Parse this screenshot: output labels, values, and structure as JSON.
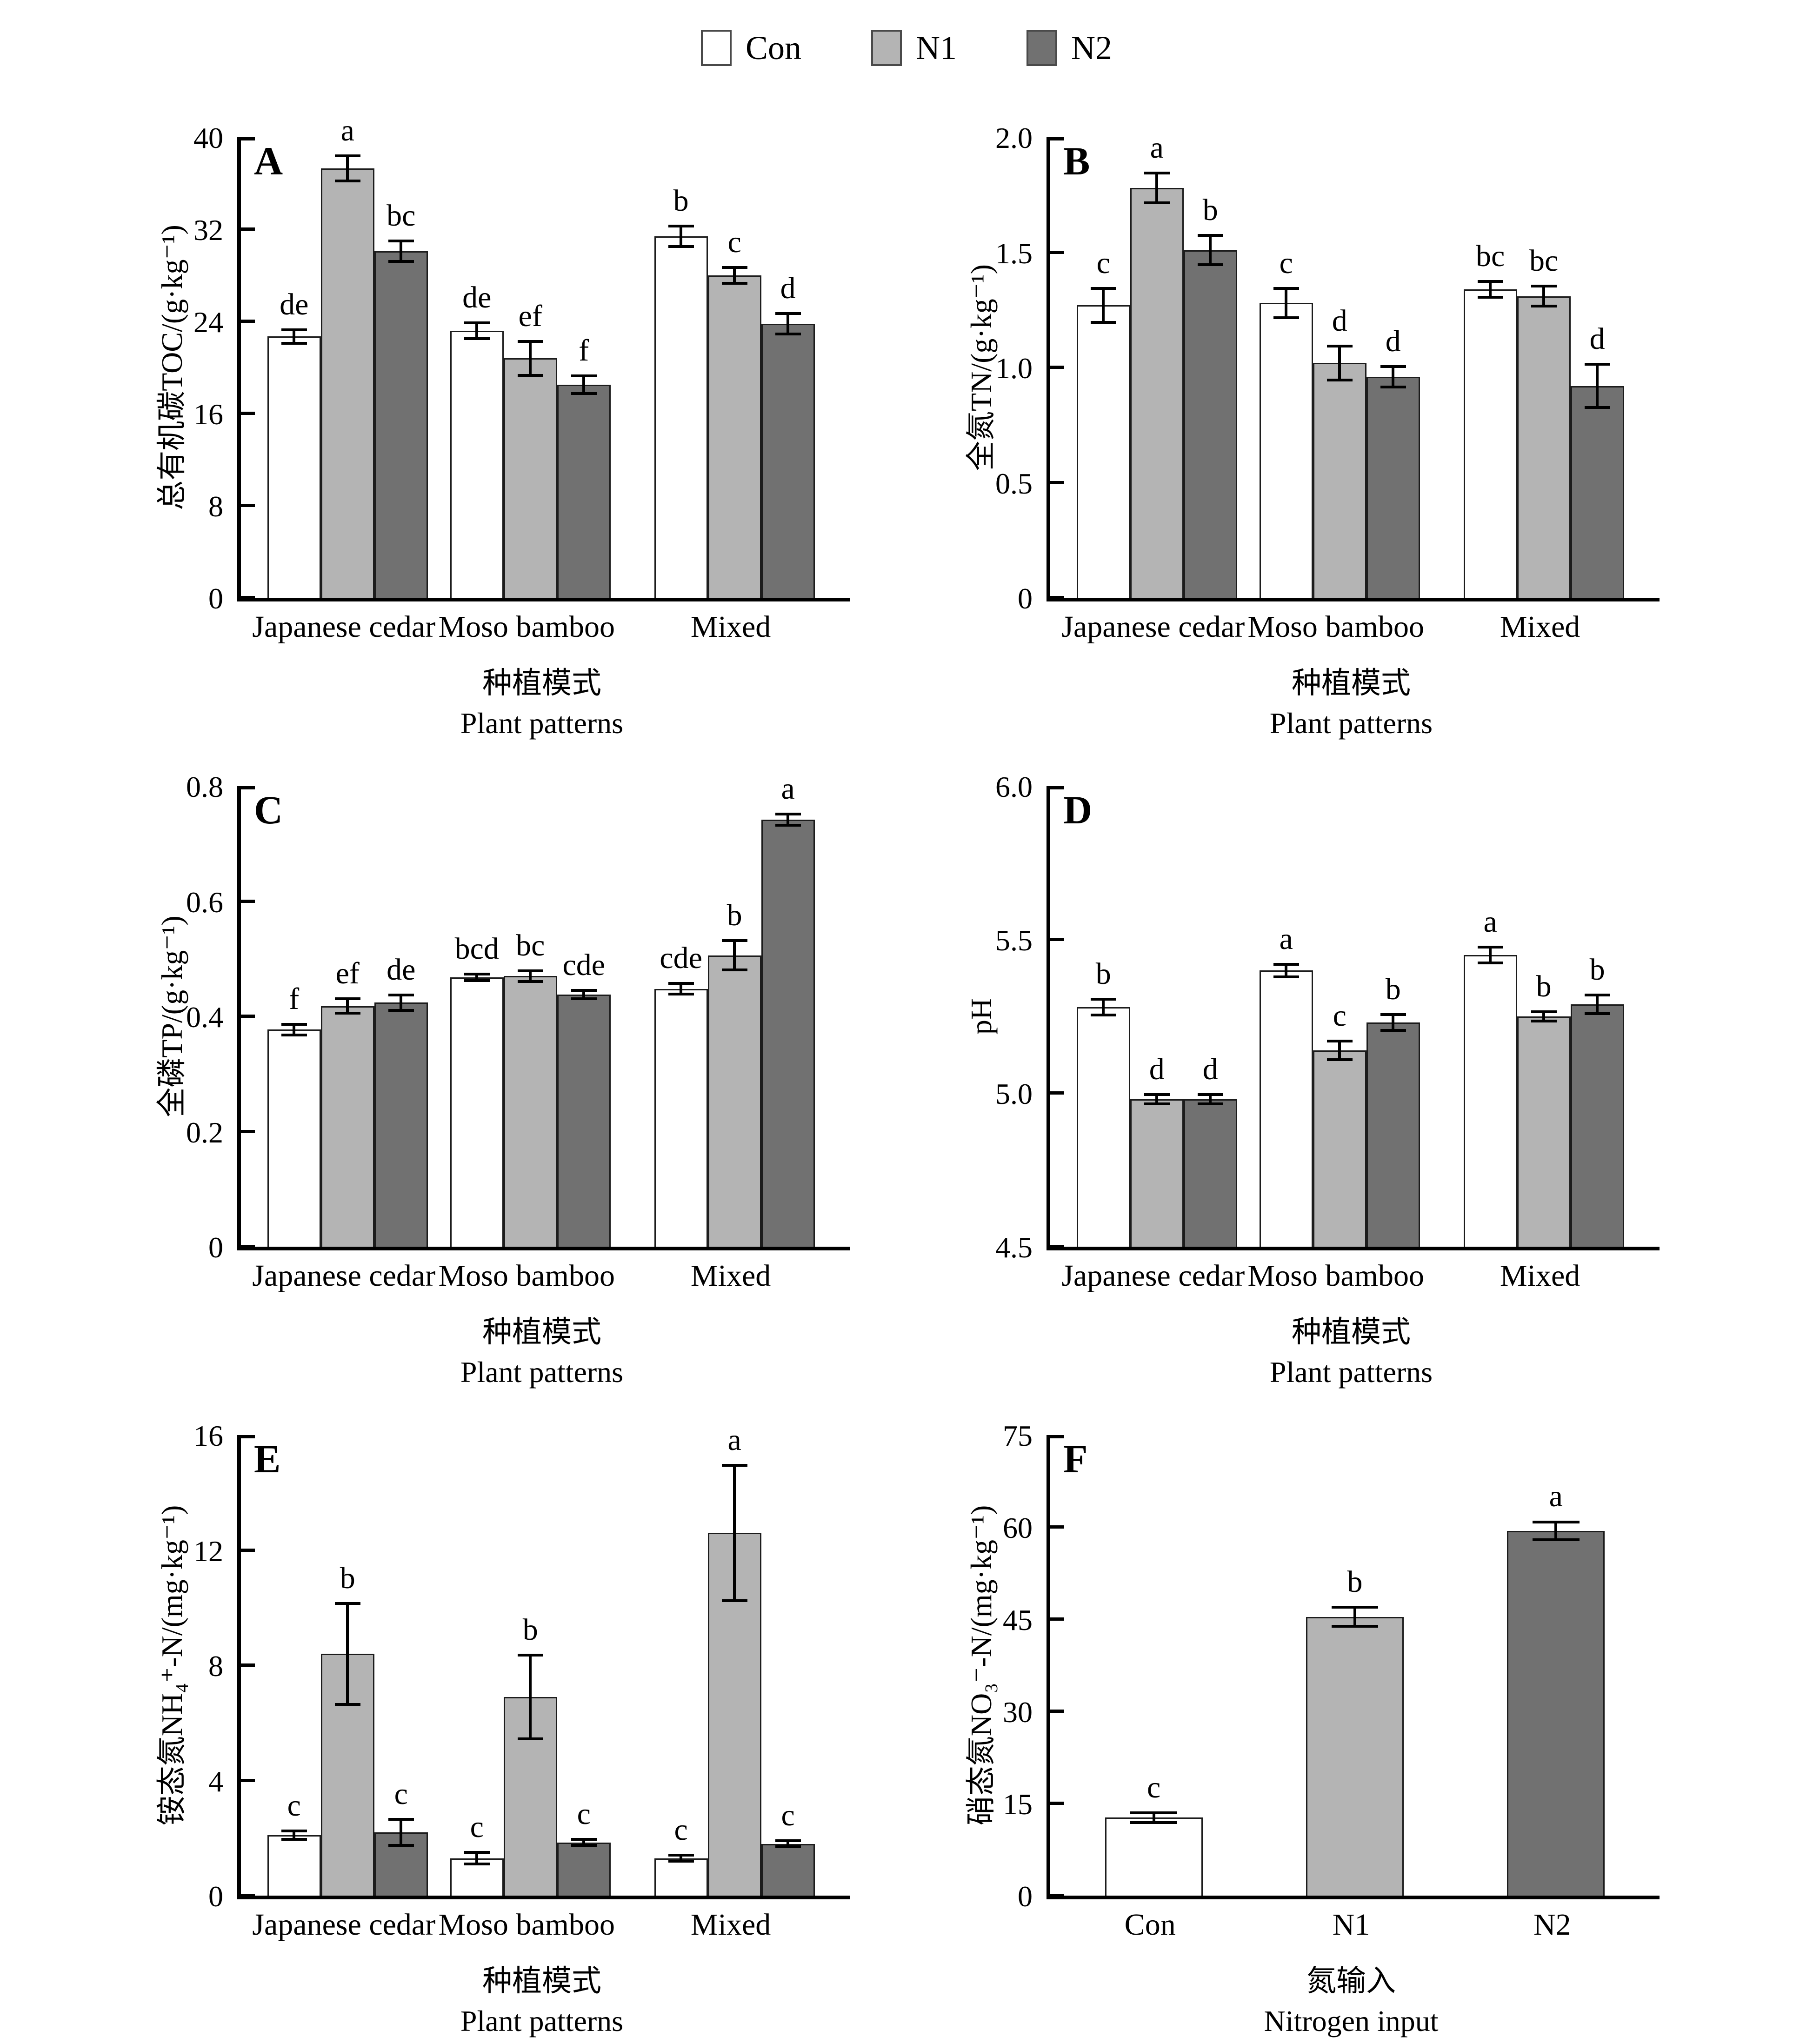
{
  "legend": {
    "items": [
      {
        "label": "Con",
        "color": "#ffffff"
      },
      {
        "label": "N1",
        "color": "#b4b4b4"
      },
      {
        "label": "N2",
        "color": "#717171"
      }
    ],
    "swatch_border_color": "#4a4a4a"
  },
  "bar_border_color": "#1c1c1c",
  "chart_data": [
    {
      "type": "bar",
      "panel_letter": "A",
      "ylabel": "总有机碳TOC/(g·kg⁻¹)",
      "ymin": 0,
      "ymax": 40,
      "yticks": [
        [
          0,
          "0"
        ],
        [
          8,
          "8"
        ],
        [
          16,
          "16"
        ],
        [
          24,
          "24"
        ],
        [
          32,
          "32"
        ],
        [
          40,
          "40"
        ]
      ],
      "categories": [
        "Japanese cedar",
        "Moso bamboo",
        "Mixed"
      ],
      "xlabel_zh": "种植模式",
      "xlabel_en": "Plant patterns",
      "series": [
        {
          "name": "Con",
          "values": [
            22.7,
            23.2,
            31.4
          ],
          "errors": [
            0.7,
            0.8,
            1.0
          ],
          "letters": [
            "de",
            "de",
            "b"
          ]
        },
        {
          "name": "N1",
          "values": [
            37.3,
            20.8,
            28.0
          ],
          "errors": [
            1.2,
            1.6,
            0.8
          ],
          "letters": [
            "a",
            "ef",
            "c"
          ]
        },
        {
          "name": "N2",
          "values": [
            30.1,
            18.5,
            23.8
          ],
          "errors": [
            1.0,
            0.9,
            1.0
          ],
          "letters": [
            "bc",
            "f",
            "d"
          ]
        }
      ]
    },
    {
      "type": "bar",
      "panel_letter": "B",
      "ylabel": "全氮TN/(g·kg⁻¹)",
      "ymin": 0,
      "ymax": 2.0,
      "yticks": [
        [
          0,
          "0"
        ],
        [
          0.5,
          "0.5"
        ],
        [
          1.0,
          "1.0"
        ],
        [
          1.5,
          "1.5"
        ],
        [
          2.0,
          "2.0"
        ]
      ],
      "categories": [
        "Japanese cedar",
        "Moso bamboo",
        "Mixed"
      ],
      "xlabel_zh": "种植模式",
      "xlabel_en": "Plant patterns",
      "series": [
        {
          "name": "Con",
          "values": [
            1.27,
            1.28,
            1.34
          ],
          "errors": [
            0.08,
            0.07,
            0.04
          ],
          "letters": [
            "c",
            "c",
            "bc"
          ]
        },
        {
          "name": "N1",
          "values": [
            1.78,
            1.02,
            1.31
          ],
          "errors": [
            0.07,
            0.08,
            0.05
          ],
          "letters": [
            "a",
            "d",
            "bc"
          ]
        },
        {
          "name": "N2",
          "values": [
            1.51,
            0.96,
            0.92
          ],
          "errors": [
            0.07,
            0.05,
            0.1
          ],
          "letters": [
            "b",
            "d",
            "d"
          ]
        }
      ]
    },
    {
      "type": "bar",
      "panel_letter": "C",
      "ylabel": "全磷TP/(g·kg⁻¹)",
      "ymin": 0,
      "ymax": 0.8,
      "yticks": [
        [
          0,
          "0"
        ],
        [
          0.2,
          "0.2"
        ],
        [
          0.4,
          "0.4"
        ],
        [
          0.6,
          "0.6"
        ],
        [
          0.8,
          "0.8"
        ]
      ],
      "categories": [
        "Japanese cedar",
        "Moso bamboo",
        "Mixed"
      ],
      "xlabel_zh": "种植模式",
      "xlabel_en": "Plant patterns",
      "series": [
        {
          "name": "Con",
          "values": [
            0.377,
            0.468,
            0.448
          ],
          "errors": [
            0.012,
            0.008,
            0.012
          ],
          "letters": [
            "f",
            "bcd",
            "cde"
          ]
        },
        {
          "name": "N1",
          "values": [
            0.418,
            0.47,
            0.506
          ],
          "errors": [
            0.015,
            0.012,
            0.028
          ],
          "letters": [
            "ef",
            "bc",
            "b"
          ]
        },
        {
          "name": "N2",
          "values": [
            0.424,
            0.438,
            0.742
          ],
          "errors": [
            0.016,
            0.01,
            0.012
          ],
          "letters": [
            "de",
            "cde",
            "a"
          ]
        }
      ]
    },
    {
      "type": "bar",
      "panel_letter": "D",
      "ylabel": "pH",
      "ymin": 4.5,
      "ymax": 6.0,
      "yticks": [
        [
          4.5,
          "4.5"
        ],
        [
          5.0,
          "5.0"
        ],
        [
          5.5,
          "5.5"
        ],
        [
          6.0,
          "6.0"
        ]
      ],
      "categories": [
        "Japanese cedar",
        "Moso bamboo",
        "Mixed"
      ],
      "xlabel_zh": "种植模式",
      "xlabel_en": "Plant patterns",
      "series": [
        {
          "name": "Con",
          "values": [
            5.28,
            5.4,
            5.45
          ],
          "errors": [
            0.03,
            0.025,
            0.03
          ],
          "letters": [
            "b",
            "a",
            "a"
          ]
        },
        {
          "name": "N1",
          "values": [
            4.98,
            5.14,
            5.25
          ],
          "errors": [
            0.02,
            0.035,
            0.02
          ],
          "letters": [
            "d",
            "c",
            "b"
          ]
        },
        {
          "name": "N2",
          "values": [
            4.98,
            5.23,
            5.29
          ],
          "errors": [
            0.02,
            0.03,
            0.035
          ],
          "letters": [
            "d",
            "b",
            "b"
          ]
        }
      ]
    },
    {
      "type": "bar",
      "panel_letter": "E",
      "ylabel": "铵态氮NH₄⁺-N/(mg·kg⁻¹)",
      "ymin": 0,
      "ymax": 16,
      "yticks": [
        [
          0,
          "0"
        ],
        [
          4,
          "4"
        ],
        [
          8,
          "8"
        ],
        [
          12,
          "12"
        ],
        [
          16,
          "16"
        ]
      ],
      "categories": [
        "Japanese cedar",
        "Moso bamboo",
        "Mixed"
      ],
      "xlabel_zh": "种植模式",
      "xlabel_en": "Plant patterns",
      "series": [
        {
          "name": "Con",
          "values": [
            2.1,
            1.3,
            1.3
          ],
          "errors": [
            0.2,
            0.25,
            0.15
          ],
          "letters": [
            "c",
            "c",
            "c"
          ]
        },
        {
          "name": "N1",
          "values": [
            8.4,
            6.9,
            12.6
          ],
          "errors": [
            1.8,
            1.5,
            2.4
          ],
          "letters": [
            "b",
            "b",
            "a"
          ]
        },
        {
          "name": "N2",
          "values": [
            2.2,
            1.85,
            1.8
          ],
          "errors": [
            0.5,
            0.15,
            0.15
          ],
          "letters": [
            "c",
            "c",
            "c"
          ]
        }
      ]
    },
    {
      "type": "bar",
      "panel_letter": "F",
      "ylabel": "硝态氮NO₃⁻-N/(mg·kg⁻¹)",
      "ymin": 0,
      "ymax": 75,
      "yticks": [
        [
          0,
          "0"
        ],
        [
          15,
          "15"
        ],
        [
          30,
          "30"
        ],
        [
          45,
          "45"
        ],
        [
          60,
          "60"
        ],
        [
          75,
          "75"
        ]
      ],
      "categories": [
        "Con",
        "N1",
        "N2"
      ],
      "xlabel_zh": "氮输入",
      "xlabel_en": "Nitrogen input",
      "values": [
        12.7,
        45.4,
        59.4
      ],
      "errors": [
        1.0,
        1.8,
        1.7
      ],
      "letters": [
        "c",
        "b",
        "a"
      ]
    }
  ]
}
